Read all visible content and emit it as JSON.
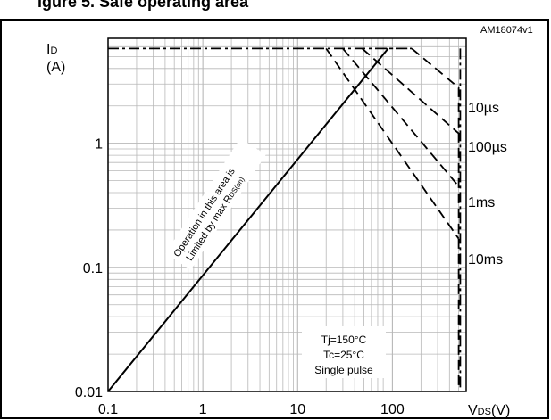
{
  "figure": {
    "title_fragment": "igure 5. Safe operating area",
    "code": "AM18074v1"
  },
  "chart_data": {
    "type": "line",
    "log_x": true,
    "log_y": true,
    "xlim": [
      0.1,
      600
    ],
    "ylim": [
      0.01,
      7
    ],
    "grid": true,
    "x_ticks": [
      {
        "v": 0.1,
        "label": "0.1"
      },
      {
        "v": 1,
        "label": "1"
      },
      {
        "v": 10,
        "label": "10"
      },
      {
        "v": 100,
        "label": "100"
      }
    ],
    "y_ticks": [
      {
        "v": 0.01,
        "label": "0.01"
      },
      {
        "v": 0.1,
        "label": "0.1"
      },
      {
        "v": 1,
        "label": "1"
      }
    ],
    "y_label": {
      "main": "I",
      "sub": "D",
      "unit": "(A)"
    },
    "x_label": {
      "main": "V",
      "sub": "DS",
      "unit": "(V)"
    },
    "series": [
      {
        "name": "",
        "style": "solid",
        "x": [
          0.1,
          90
        ],
        "y": [
          0.01,
          5.8
        ]
      },
      {
        "name": "",
        "style": "dash-dot",
        "x": [
          0.1,
          160,
          160,
          80
        ],
        "y": [
          5.8,
          5.8,
          5.8,
          5.8
        ]
      },
      {
        "name": "10µs",
        "style": "dashed",
        "x": [
          160,
          500,
          500
        ],
        "y": [
          5.8,
          2.8,
          0.0105
        ]
      },
      {
        "name": "100µs",
        "style": "dashed",
        "x": [
          48,
          500
        ],
        "y": [
          5.8,
          1.2
        ]
      },
      {
        "name": "1ms",
        "style": "dashed",
        "x": [
          30,
          500
        ],
        "y": [
          5.8,
          0.45
        ]
      },
      {
        "name": "10ms",
        "style": "dashed",
        "x": [
          20,
          500
        ],
        "y": [
          5.8,
          0.17
        ]
      },
      {
        "name": "",
        "style": "dash-dot",
        "x": [
          520,
          520
        ],
        "y": [
          5.8,
          0.01
        ]
      }
    ],
    "curve_labels": [
      "10µs",
      "100µs",
      "1ms",
      "10ms"
    ],
    "annotation": {
      "line1": "Operation in this area is",
      "line2_pre": "Limited by max R",
      "line2_sub": "DS(on)"
    },
    "conditions": [
      "Tj=150°C",
      "Tc=25°C",
      "Single pulse"
    ]
  }
}
